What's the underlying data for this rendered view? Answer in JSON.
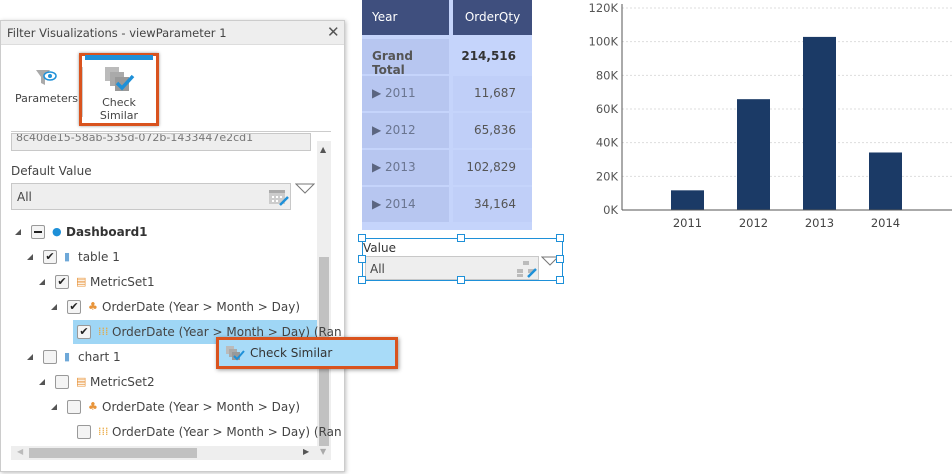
{
  "panel": {
    "title": "Filter Visualizations - viewParameter 1",
    "toolbar": {
      "parameters_label": "Parameters",
      "check_similar_label_1": "Check",
      "check_similar_label_2": "Similar"
    },
    "id_field_value": "8c40de15-58ab-535d-072b-1433447e2cd1",
    "default_value_label": "Default Value",
    "default_value": "All",
    "tree": [
      {
        "label": "Dashboard1",
        "state": "partial",
        "level": 0,
        "icon": "dashboard-icon",
        "bold": true
      },
      {
        "label": "table 1",
        "state": "checked",
        "level": 1,
        "icon": "bar-chart-icon"
      },
      {
        "label": "MetricSet1",
        "state": "checked",
        "level": 2,
        "icon": "metricset-icon"
      },
      {
        "label": "OrderDate (Year > Month > Day)",
        "state": "checked",
        "level": 3,
        "icon": "hierarchy-icon"
      },
      {
        "label": "OrderDate (Year > Month > Day) (Ran",
        "state": "checked",
        "level": 4,
        "icon": "range-icon",
        "selected": true
      },
      {
        "label": "chart 1",
        "state": "unchecked",
        "level": 1,
        "icon": "bar-chart-icon"
      },
      {
        "label": "MetricSet2",
        "state": "unchecked",
        "level": 2,
        "icon": "metricset-icon"
      },
      {
        "label": "OrderDate (Year > Month > Day)",
        "state": "unchecked",
        "level": 3,
        "icon": "hierarchy-icon"
      },
      {
        "label": "OrderDate (Year > Month > Day) (Ran",
        "state": "unchecked",
        "level": 4,
        "icon": "range-icon"
      }
    ],
    "context_menu": {
      "check_similar": "Check Similar"
    }
  },
  "table": {
    "headers": [
      "Year",
      "OrderQty"
    ],
    "grand_total": {
      "label": "Grand Total",
      "value": "214,516"
    },
    "rows": [
      {
        "year": "2011",
        "qty": "11,687"
      },
      {
        "year": "2012",
        "qty": "65,836"
      },
      {
        "year": "2013",
        "qty": "102,829"
      },
      {
        "year": "2014",
        "qty": "34,164"
      }
    ]
  },
  "param_widget": {
    "label": "Value",
    "value": "All"
  },
  "chart_data": {
    "type": "bar",
    "categories": [
      "2011",
      "2012",
      "2013",
      "2014"
    ],
    "values": [
      11687,
      65836,
      102829,
      34164
    ],
    "ylim": [
      0,
      120000
    ],
    "yticks": [
      "0K",
      "20K",
      "40K",
      "60K",
      "80K",
      "100K",
      "120K"
    ],
    "grid": true,
    "bar_color": "#1b3a66"
  }
}
